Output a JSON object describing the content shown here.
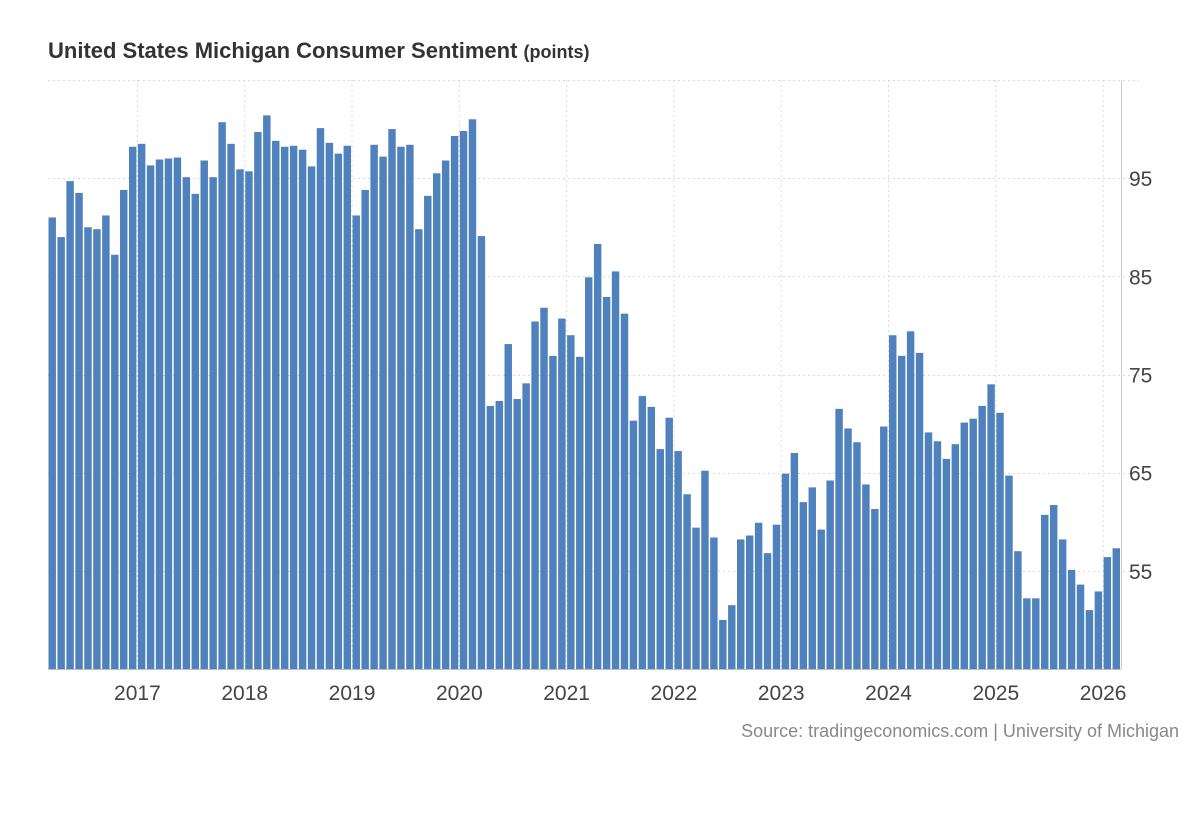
{
  "chart_data": {
    "type": "bar",
    "title": "United States Michigan Consumer Sentiment",
    "unit": "(points)",
    "source": "Source: tradingeconomics.com | University of Michigan",
    "ylim": [
      45,
      105
    ],
    "yticks": [
      55,
      65,
      75,
      85,
      95
    ],
    "year_ticks": [
      "2017",
      "2018",
      "2019",
      "2020",
      "2021",
      "2022",
      "2023",
      "2024",
      "2025",
      "2026"
    ],
    "x_start": "2016-03",
    "x_end": "2026-02",
    "grid": true,
    "bar_color": "#4f81bd",
    "series": [
      {
        "name": "Michigan Consumer Sentiment",
        "values": [
          91.0,
          89.0,
          94.7,
          93.5,
          90.0,
          89.8,
          91.2,
          87.2,
          93.8,
          98.2,
          98.5,
          96.3,
          96.9,
          97.0,
          97.1,
          95.1,
          93.4,
          96.8,
          95.1,
          100.7,
          98.5,
          95.9,
          95.7,
          99.7,
          101.4,
          98.8,
          98.2,
          98.3,
          97.9,
          96.2,
          100.1,
          98.6,
          97.5,
          98.3,
          91.2,
          93.8,
          98.4,
          97.2,
          100.0,
          98.2,
          98.4,
          89.8,
          93.2,
          95.5,
          96.8,
          99.3,
          99.8,
          101.0,
          89.1,
          71.8,
          72.3,
          78.1,
          72.5,
          74.1,
          80.4,
          81.8,
          76.9,
          80.7,
          79.0,
          76.8,
          84.9,
          88.3,
          82.9,
          85.5,
          81.2,
          70.3,
          72.8,
          71.7,
          67.4,
          70.6,
          67.2,
          62.8,
          59.4,
          65.2,
          58.4,
          50.0,
          51.5,
          58.2,
          58.6,
          59.9,
          56.8,
          59.7,
          64.9,
          67.0,
          62.0,
          63.5,
          59.2,
          64.2,
          71.5,
          69.5,
          68.1,
          63.8,
          61.3,
          69.7,
          79.0,
          76.9,
          79.4,
          77.2,
          69.1,
          68.2,
          66.4,
          67.9,
          70.1,
          70.5,
          71.8,
          74.0,
          71.1,
          64.7,
          57.0,
          52.2,
          52.2,
          60.7,
          61.7,
          58.2,
          55.1,
          53.6,
          51.0,
          52.9,
          56.4,
          57.3
        ]
      }
    ]
  }
}
